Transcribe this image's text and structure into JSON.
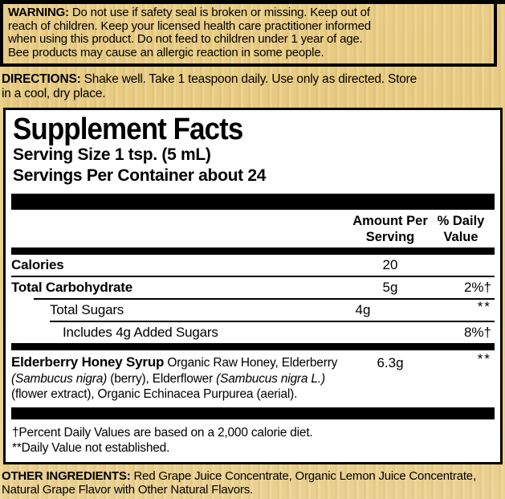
{
  "colors": {
    "background_gold": "#e6c980",
    "panel_background": "#ffffff",
    "ink": "#000000"
  },
  "warning": {
    "label": "WARNING:",
    "text": " Do not use if safety seal is broken or missing. Keep out of\nreach of children. Keep your licensed health care practitioner informed\nwhen using this product. Do not feed to children under 1 year of age.\nBee products may cause an allergic reaction in some people."
  },
  "directions": {
    "label": "DIRECTIONS:",
    "text": " Shake well. Take 1 teaspoon daily. Use only as directed. Store\nin a cool, dry place."
  },
  "facts": {
    "title": "Supplement Facts",
    "serving_size": "Serving Size 1 tsp. (5 mL)",
    "servings_per_container": "Servings Per Container about 24",
    "headers": {
      "amount": "Amount Per\nServing",
      "daily_value": "% Daily\nValue"
    },
    "rows": [
      {
        "name": "Calories",
        "amount": "20",
        "dv": ""
      },
      {
        "name": "Total Carbohydrate",
        "amount": "5g",
        "dv": "2%†"
      },
      {
        "name": "Total Sugars",
        "amount": "4g",
        "dv": "**"
      },
      {
        "name": "Includes 4g Added Sugars",
        "amount": "",
        "dv": "8%†"
      }
    ],
    "elderberry": {
      "name": "Elderberry Honey Syrup",
      "desc_1": " Organic Raw Honey, Elderberry ",
      "latin_1": "(Sambucus nigra)",
      "desc_2": " (berry), Elderflower ",
      "latin_2": "(Sambucus nigra L.)",
      "desc_3": " (flower extract), Organic Echinacea Purpurea (aerial).",
      "amount": "6.3g",
      "dv": "**"
    },
    "footnotes": "†Percent Daily Values are based on a 2,000 calorie diet.\n**Daily Value not established."
  },
  "other_ingredients": {
    "label": "OTHER INGREDIENTS:",
    "text": " Red Grape Juice Concentrate, Organic Lemon Juice Concentrate,\nNatural Grape Flavor with Other Natural Flavors."
  }
}
